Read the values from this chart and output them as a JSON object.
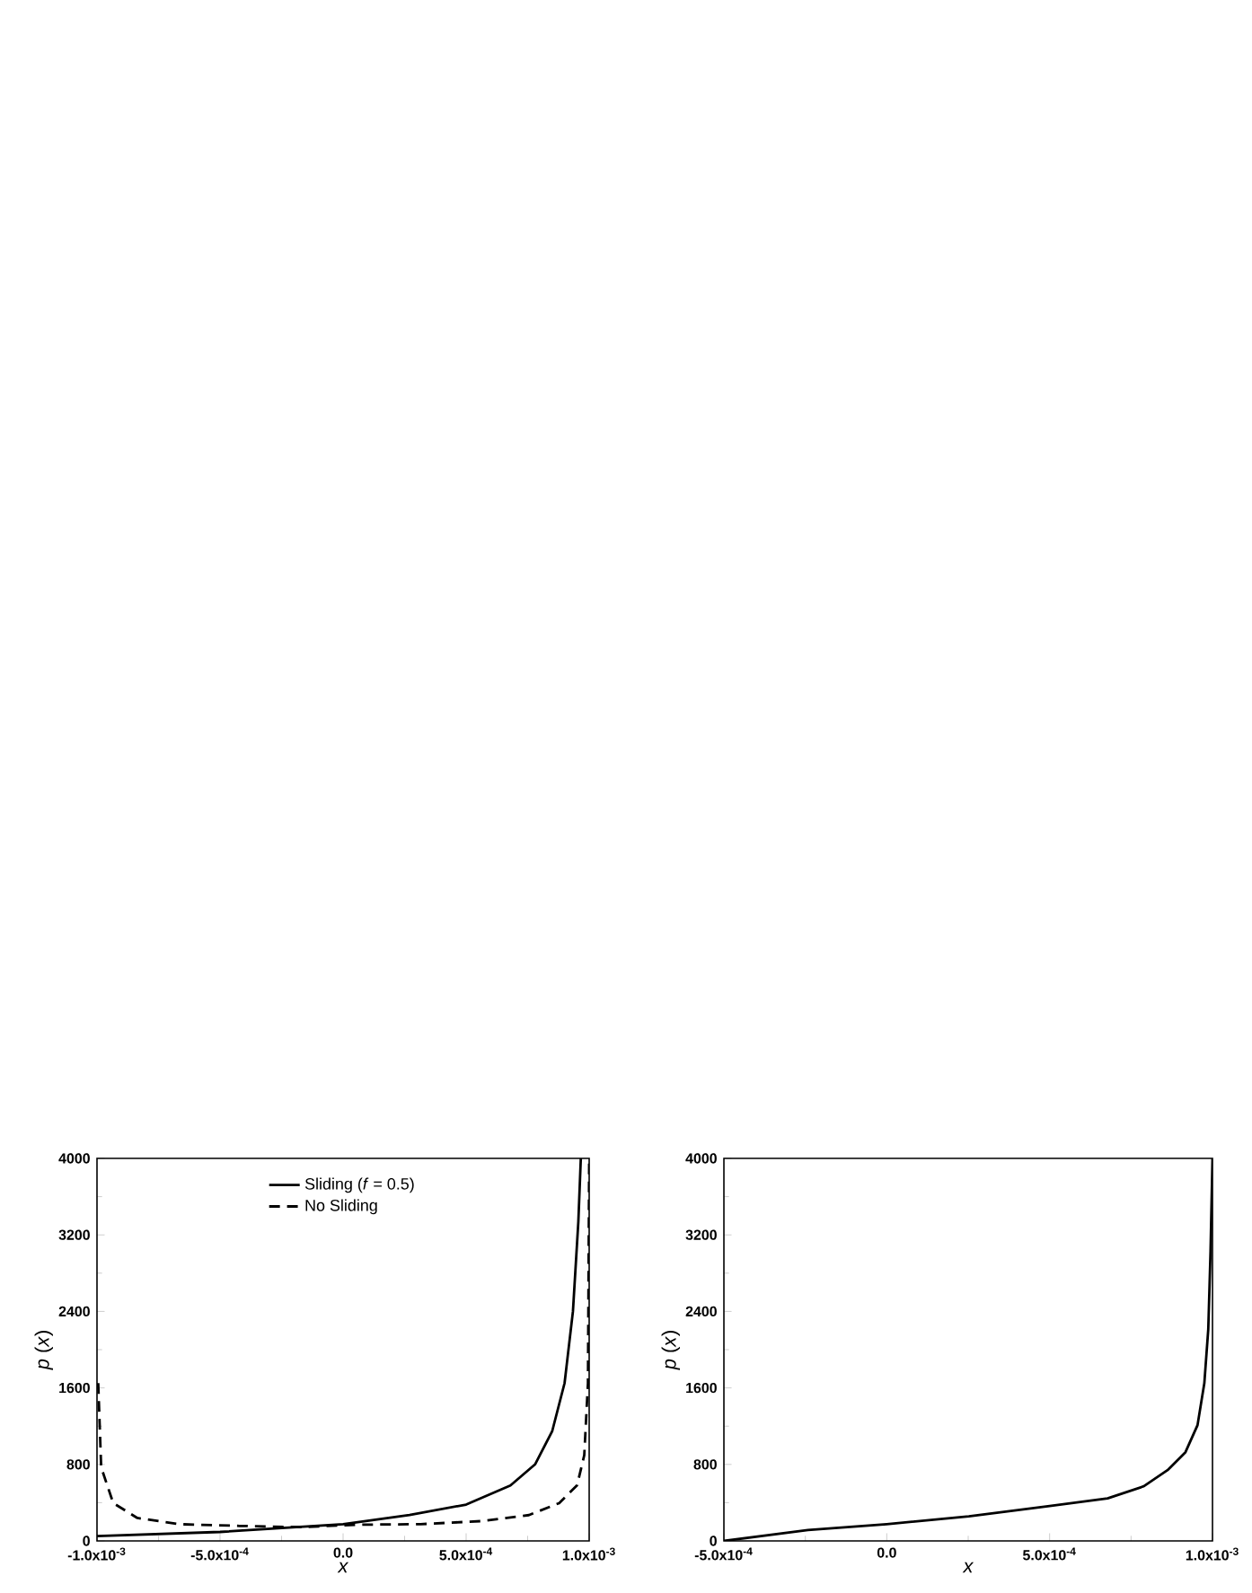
{
  "chart_data": [
    {
      "type": "line",
      "xlabel": "x",
      "ylabel": "*p* (*x*)",
      "xlim": [
        -0.001,
        0.001
      ],
      "ylim": [
        0,
        4000
      ],
      "xticks": [
        {
          "value": -0.001,
          "label": "-1.0x10$^{-3}$"
        },
        {
          "value": -0.0005,
          "label": "-5.0x10$^{-4}$"
        },
        {
          "value": 0,
          "label": "0.0"
        },
        {
          "value": 0.0005,
          "label": "5.0x10$^{-4}$"
        },
        {
          "value": 0.001,
          "label": "1.0x10$^{-3}$"
        }
      ],
      "yticks": [
        0,
        800,
        1600,
        2400,
        3200,
        4000
      ],
      "legend": "top",
      "grid": false,
      "series": [
        {
          "name": "Sliding (*f* = 0.5)",
          "color": "#000000",
          "line_style": "solid",
          "x": [
            -0.001,
            -0.0005,
            0,
            0.00027,
            0.0005,
            0.00068,
            0.00078,
            0.00085,
            0.0009,
            0.000934,
            0.000956,
            0.000966
          ],
          "values": [
            50,
            94,
            175,
            270,
            380,
            580,
            800,
            1150,
            1650,
            2400,
            3340,
            4000
          ]
        },
        {
          "name": "No Sliding",
          "color": "#000000",
          "line_style": "dashed",
          "x": [
            -0.000995,
            -0.000983,
            -0.000934,
            -0.000836,
            -0.000665,
            -0.00042,
            -0.000175,
            7e-05,
            0.000315,
            0.00056,
            0.000755,
            0.000878,
            0.000951,
            0.00098,
            0.000995,
            0.001
          ],
          "values": [
            1650,
            770,
            395,
            240,
            175,
            157,
            144,
            170,
            175,
            207,
            270,
            395,
            583,
            897,
            1650,
            4000
          ]
        }
      ]
    },
    {
      "type": "line",
      "xlabel": "x",
      "ylabel": "*p* (*x*)",
      "xlim": [
        -0.0005,
        0.001
      ],
      "ylim": [
        0,
        4000
      ],
      "xticks": [
        {
          "value": -0.0005,
          "label": "-5.0x10$^{-4}$"
        },
        {
          "value": 0,
          "label": "0.0"
        },
        {
          "value": 0.0005,
          "label": "5.0x10$^{-4}$"
        },
        {
          "value": 0.001,
          "label": "1.0x10$^{-3}$"
        }
      ],
      "yticks": [
        0,
        800,
        1600,
        2400,
        3200,
        4000
      ],
      "grid": false,
      "series": [
        {
          "color": "#000000",
          "line_style": "solid",
          "x": [
            -0.0005,
            -0.000242,
            0,
            0.000252,
            0.0005,
            0.000678,
            0.000788,
            0.000862,
            0.000917,
            0.000954,
            0.000975,
            0.000987,
            0.000994,
            0.001
          ],
          "values": [
            0,
            113,
            175,
            257,
            364,
            445,
            570,
            740,
            928,
            1210,
            1650,
            2213,
            3030,
            4000
          ]
        }
      ]
    }
  ]
}
